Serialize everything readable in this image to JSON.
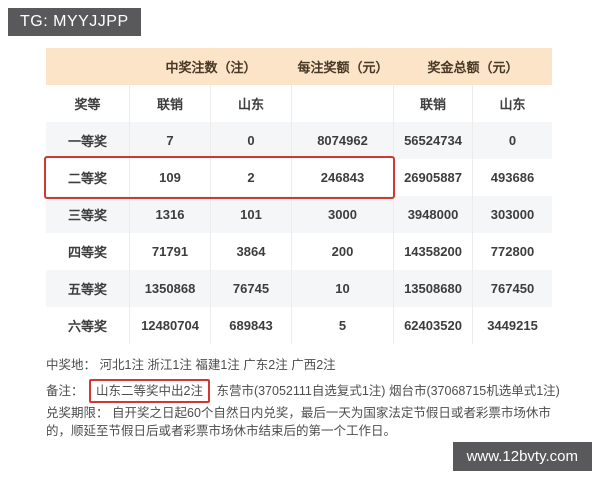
{
  "banner": {
    "text": "TG: MYYJJPP"
  },
  "watermark": {
    "text": "www.12bvty.com"
  },
  "table": {
    "header_groups": {
      "count": "中奖注数（注）",
      "per": "每注奖额（元）",
      "total": "奖金总额（元）"
    },
    "header_cols": {
      "level": "奖等",
      "count_lianxiao": "联销",
      "count_shandong": "山东",
      "blank": "",
      "total_lianxiao": "联销",
      "total_shandong": "山东"
    },
    "rows": [
      [
        "一等奖",
        "7",
        "0",
        "8074962",
        "56524734",
        "0"
      ],
      [
        "二等奖",
        "109",
        "2",
        "246843",
        "26905887",
        "493686"
      ],
      [
        "三等奖",
        "1316",
        "101",
        "3000",
        "3948000",
        "303000"
      ],
      [
        "四等奖",
        "71791",
        "3864",
        "200",
        "14358200",
        "772800"
      ],
      [
        "五等奖",
        "1350868",
        "76745",
        "10",
        "13508680",
        "767450"
      ],
      [
        "六等奖",
        "12480704",
        "689843",
        "5",
        "62403520",
        "3449215"
      ]
    ]
  },
  "footer": {
    "locations_label": "中奖地：",
    "locations_text": "河北1注 浙江1注 福建1注 广东2注 广西2注",
    "remark_label": "备注：",
    "remark_highlight": "山东二等奖中出2注",
    "remark_rest": "东营市(37052111自选复式1注) 烟台市(37068715机选单式1注)",
    "deadline_label": "兑奖期限：",
    "deadline_text": "自开奖之日起60个自然日内兑奖，最后一天为国家法定节假日或者彩票市场休市的，顺延至节假日后或者彩票市场休市结束后的第一个工作日。"
  },
  "colors": {
    "accent_red": "#d0392f",
    "header_peach": "#fbe4c7",
    "banner_gray": "#59595b",
    "stripe_gray": "#f4f6f7"
  }
}
